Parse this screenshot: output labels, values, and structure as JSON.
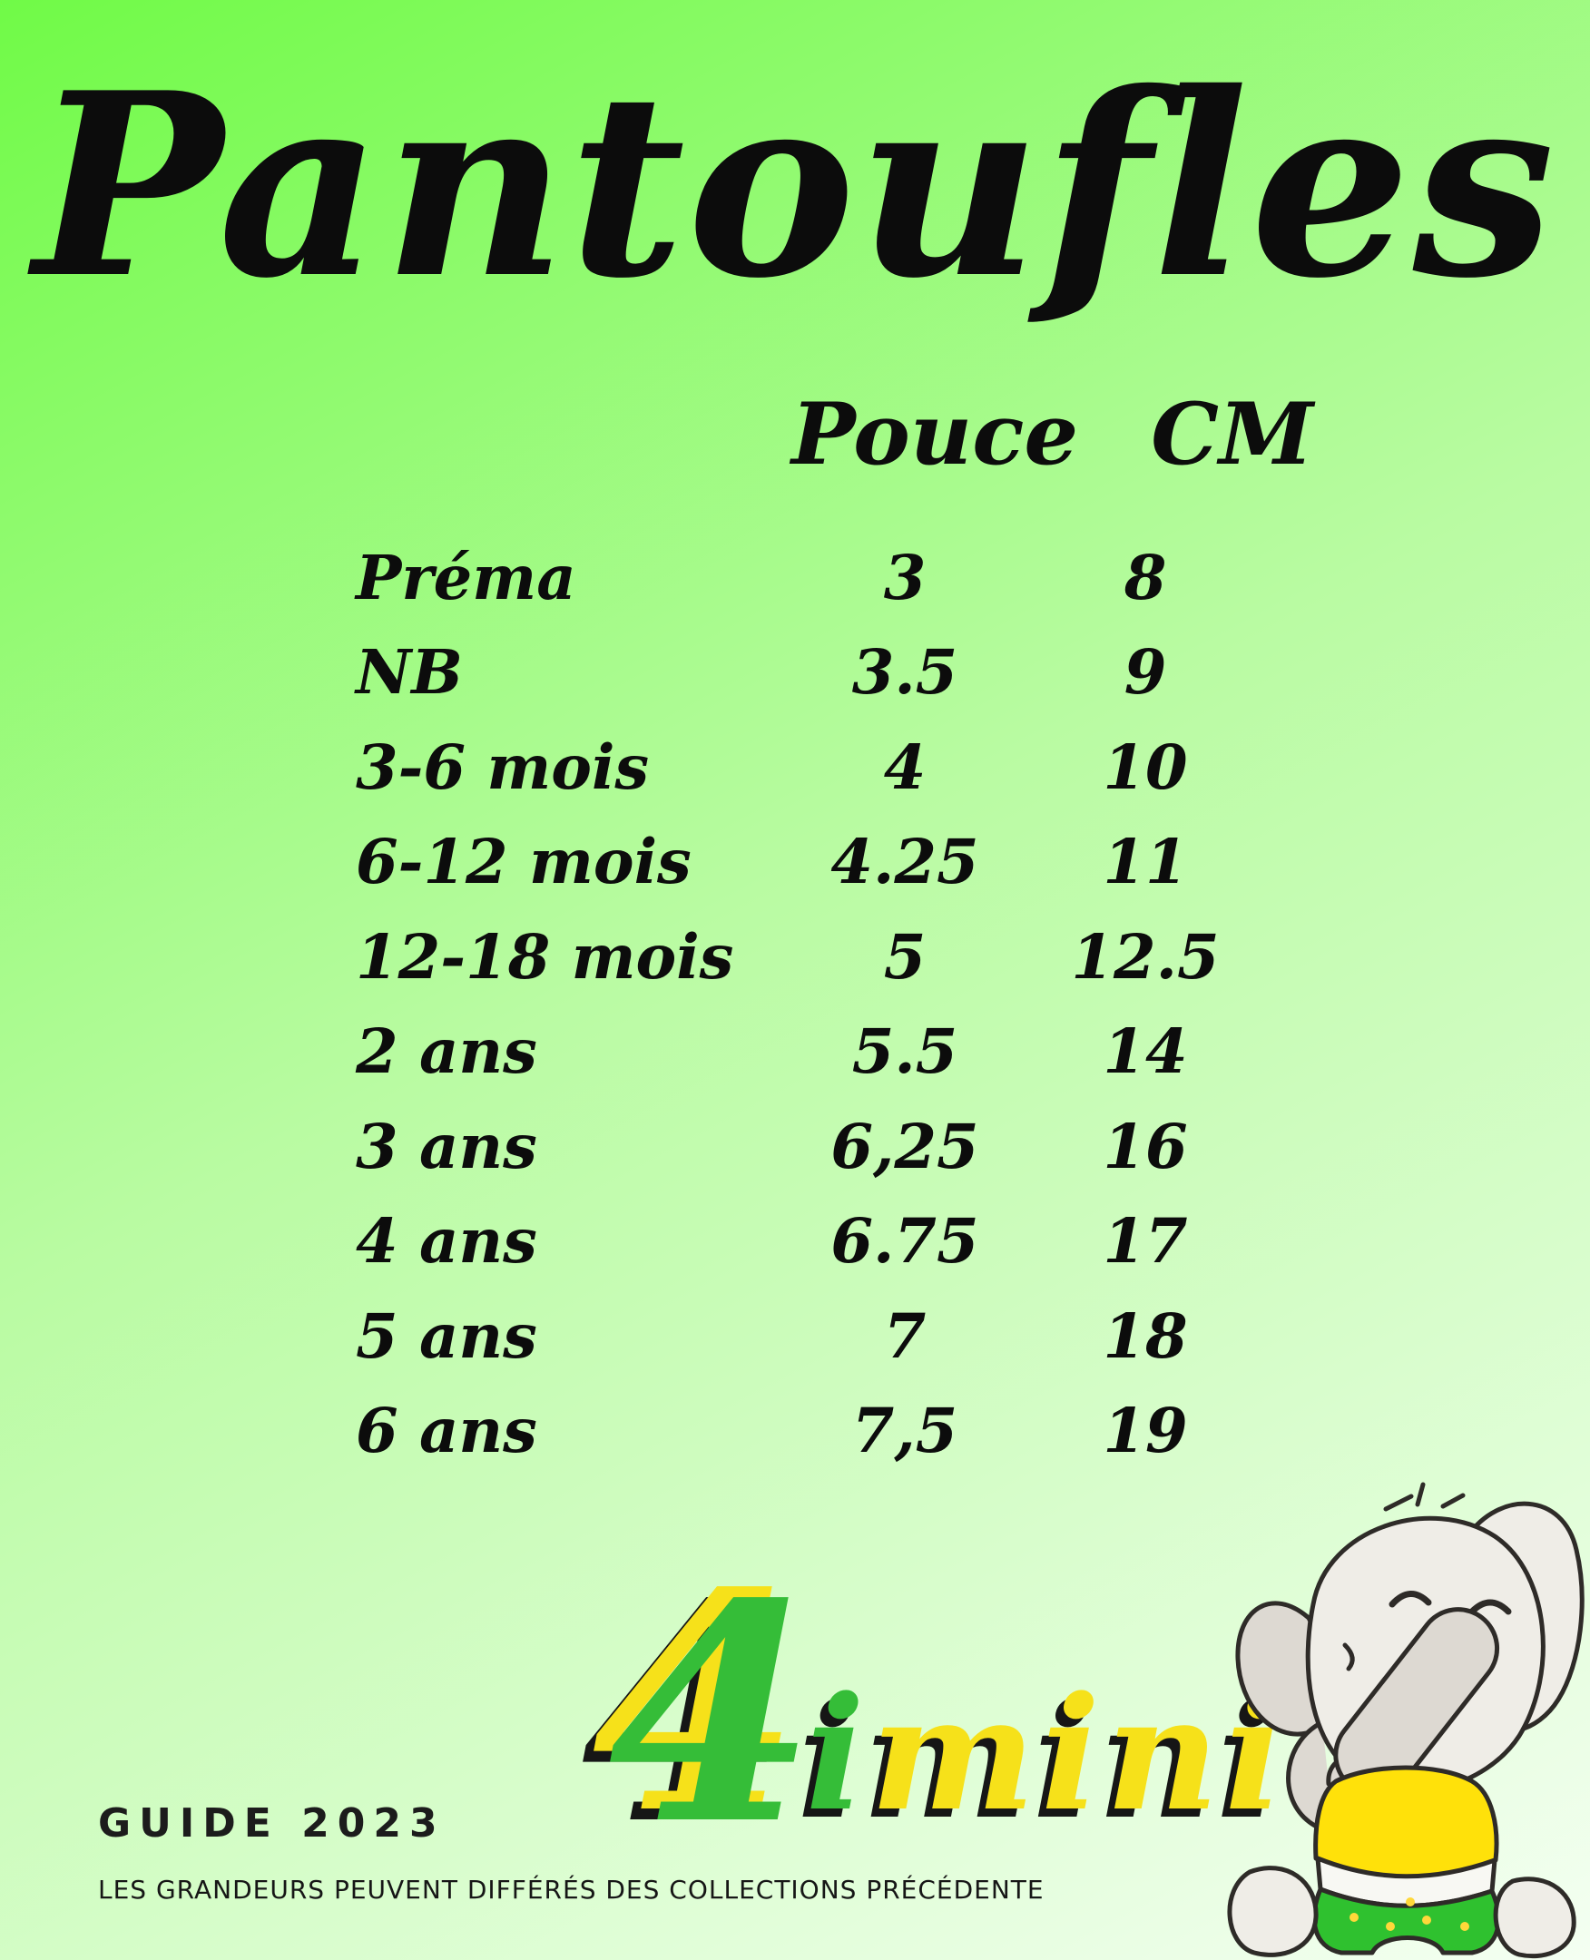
{
  "title": "Pantoufles",
  "table": {
    "headers": {
      "pouce": "Pouce",
      "cm": "CM"
    },
    "rows": [
      {
        "label": "Préma",
        "pouce": "3",
        "cm": "8"
      },
      {
        "label": "NB",
        "pouce": "3.5",
        "cm": "9"
      },
      {
        "label": "3-6 mois",
        "pouce": "4",
        "cm": "10"
      },
      {
        "label": "6-12 mois",
        "pouce": "4.25",
        "cm": "11"
      },
      {
        "label": "12-18 mois",
        "pouce": "5",
        "cm": "12.5"
      },
      {
        "label": "2 ans",
        "pouce": "5.5",
        "cm": "14"
      },
      {
        "label": "3 ans",
        "pouce": "6,25",
        "cm": "16"
      },
      {
        "label": "4 ans",
        "pouce": "6.75",
        "cm": "17"
      },
      {
        "label": "5 ans",
        "pouce": "7",
        "cm": "18"
      },
      {
        "label": "6 ans",
        "pouce": "7,5",
        "cm": "19"
      }
    ]
  },
  "logo": {
    "number": "4",
    "letters": [
      {
        "ch": "i",
        "color": "green"
      },
      {
        "ch": "m",
        "color": "yellow"
      },
      {
        "ch": "i",
        "color": "yellow"
      },
      {
        "ch": "n",
        "color": "yellow"
      },
      {
        "ch": "i",
        "color": "yellow"
      }
    ],
    "full_text": "4imini"
  },
  "mascot": "baby-elephant hiding face with trunk, yellow shirt, green polka-dot diaper",
  "footer": {
    "guide_label": "GUIDE 2023",
    "disclaimer": "LES GRANDEURS PEUVENT DIFFÉRÉS DES COLLECTIONS PRÉCÉDENTE"
  },
  "colors": {
    "bg_top": "#70fa47",
    "bg_mid": "#b9fba2",
    "bg_bottom": "#f4fff2",
    "ink": "#0c0c0c",
    "logo_yellow": "#f6e11a",
    "logo_green": "#35bd38",
    "logo_shadow": "#161616",
    "elephant_gray": "#efede7",
    "elephant_shade": "#ddd9d2",
    "elephant_line": "#2e2b28",
    "shirt_yellow": "#ffe10a",
    "shorts_green": "#2fc12f"
  }
}
